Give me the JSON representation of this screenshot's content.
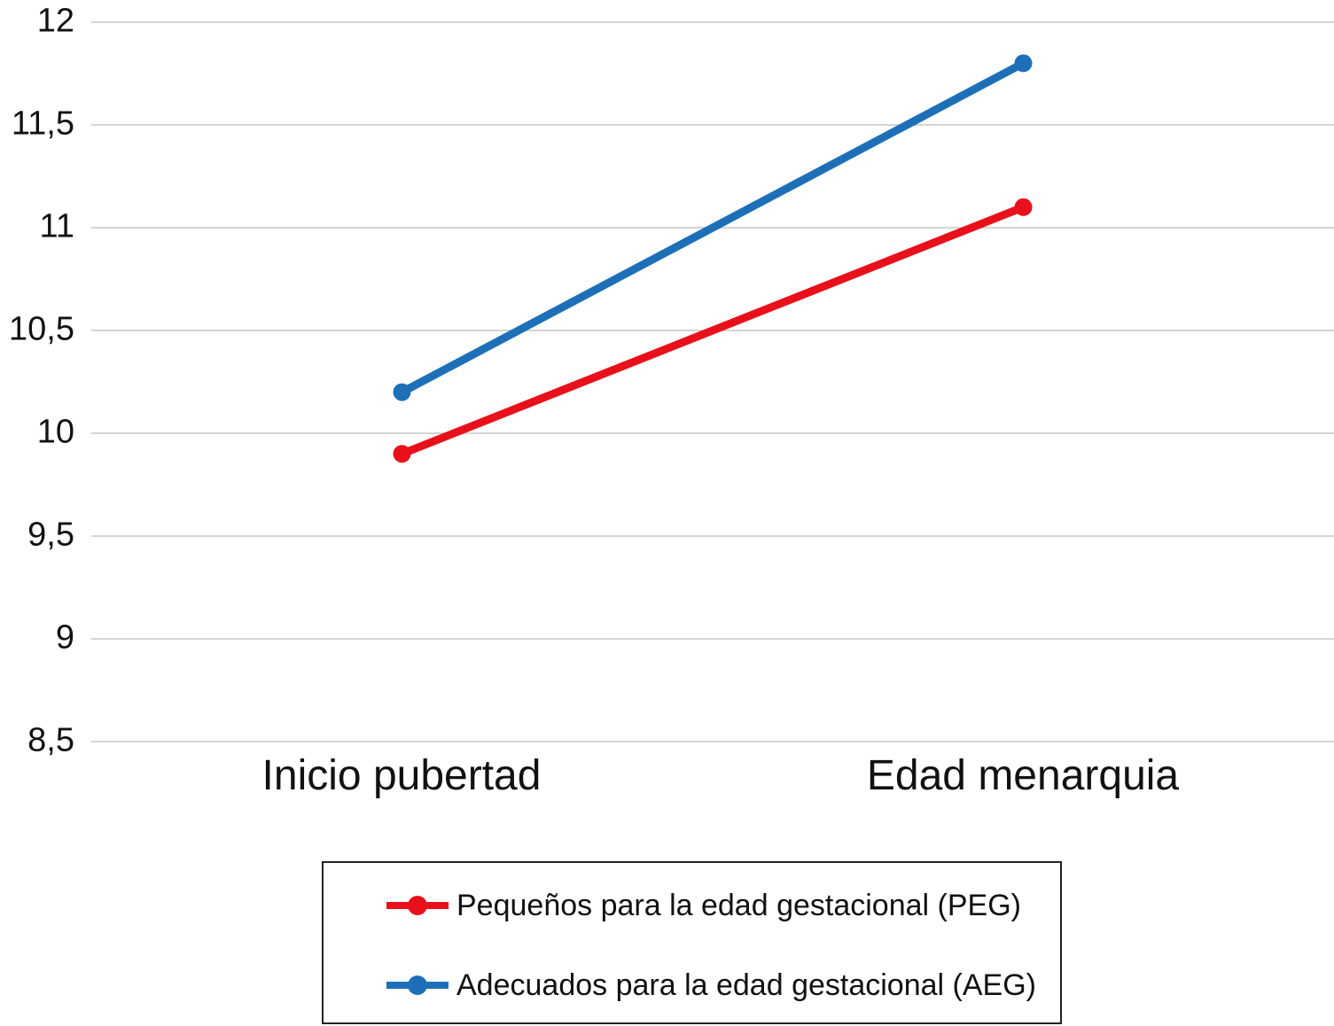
{
  "chart_data": {
    "type": "line",
    "categories": [
      "Inicio pubertad",
      "Edad menarquia"
    ],
    "series": [
      {
        "name": "Pequeños para la edad gestacional (PEG)",
        "color": "#e8101a",
        "values": [
          9.9,
          11.1
        ]
      },
      {
        "name": "Adecuados para la edad gestacional (AEG)",
        "color": "#1d70b8",
        "values": [
          10.2,
          11.8
        ]
      }
    ],
    "ylim": [
      8.5,
      12
    ],
    "ytick_values": [
      12,
      11.5,
      11,
      10.5,
      10,
      9.5,
      9,
      8.5
    ],
    "ytick_labels": [
      "12",
      "11,5",
      "11",
      "10,5",
      "10",
      "9,5",
      "9",
      "8,5"
    ],
    "decimal_separator": ",",
    "grid": true,
    "grid_color": "#d4d4d4",
    "text_color": "#111111",
    "legend_position": "bottom",
    "legend_border_color": "#222222",
    "marker_shape": "circle"
  }
}
